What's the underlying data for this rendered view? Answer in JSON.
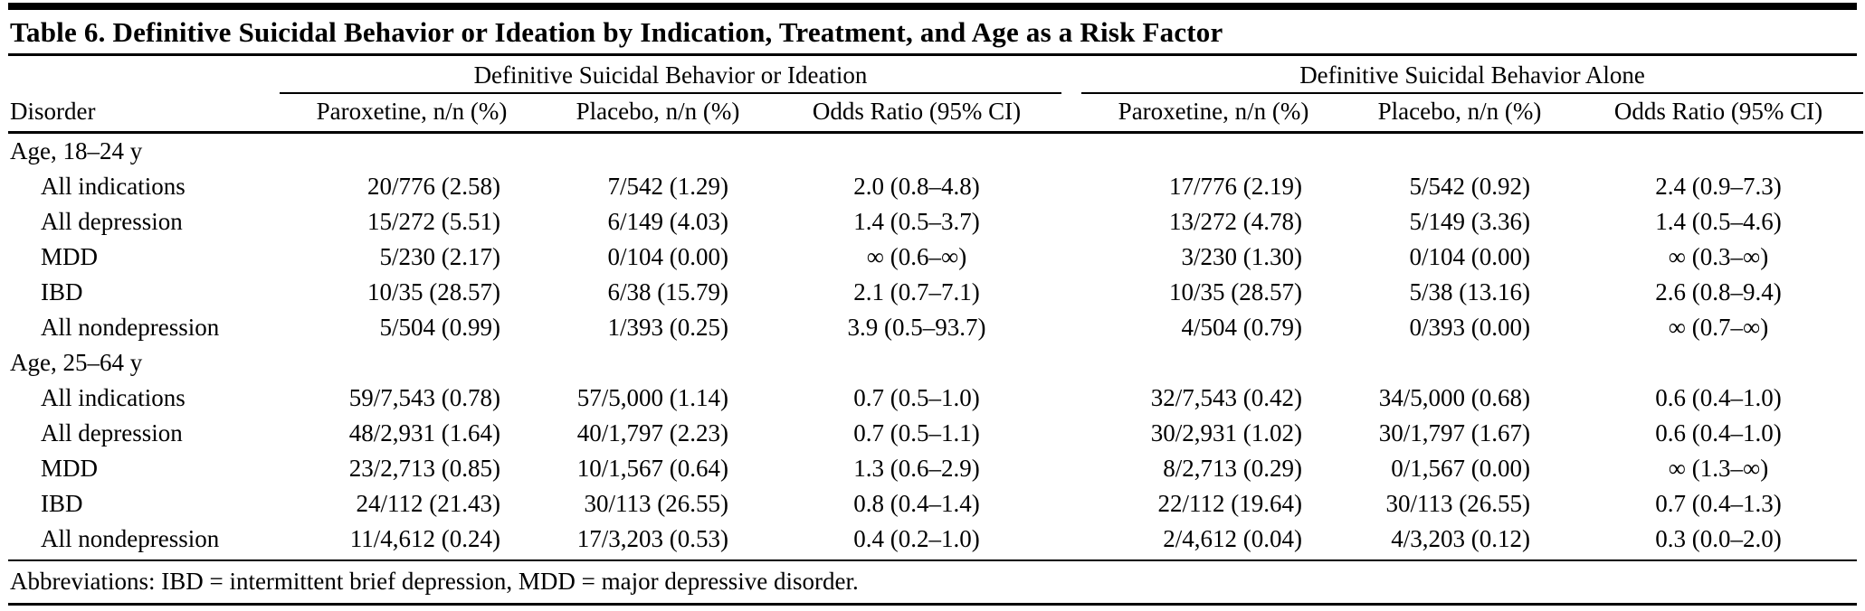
{
  "title": "Table 6. Definitive Suicidal Behavior or Ideation by Indication, Treatment, and Age as a Risk Factor",
  "groups": [
    "Definitive Suicidal Behavior or Ideation",
    "Definitive Suicidal Behavior Alone"
  ],
  "disorder_header": "Disorder",
  "columns": [
    "Paroxetine, n/n (%)",
    "Placebo, n/n (%)",
    "Odds Ratio (95% CI)",
    "Paroxetine, n/n (%)",
    "Placebo, n/n (%)",
    "Odds Ratio (95% CI)"
  ],
  "sections": [
    {
      "label": "Age, 18–24 y",
      "rows": [
        {
          "disorder": "All indications",
          "cells": [
            "20/776 (2.58)",
            "7/542 (1.29)",
            "2.0 (0.8–4.8)",
            "17/776 (2.19)",
            "5/542 (0.92)",
            "2.4 (0.9–7.3)"
          ]
        },
        {
          "disorder": "All depression",
          "cells": [
            "15/272 (5.51)",
            "6/149 (4.03)",
            "1.4 (0.5–3.7)",
            "13/272 (4.78)",
            "5/149 (3.36)",
            "1.4 (0.5–4.6)"
          ]
        },
        {
          "disorder": "MDD",
          "cells": [
            "5/230 (2.17)",
            "0/104 (0.00)",
            "∞ (0.6–∞)",
            "3/230 (1.30)",
            "0/104 (0.00)",
            "∞ (0.3–∞)"
          ]
        },
        {
          "disorder": "IBD",
          "cells": [
            "10/35 (28.57)",
            "6/38 (15.79)",
            "2.1 (0.7–7.1)",
            "10/35 (28.57)",
            "5/38 (13.16)",
            "2.6 (0.8–9.4)"
          ]
        },
        {
          "disorder": "All nondepression",
          "cells": [
            "5/504 (0.99)",
            "1/393 (0.25)",
            "3.9 (0.5–93.7)",
            "4/504 (0.79)",
            "0/393 (0.00)",
            "∞ (0.7–∞)"
          ]
        }
      ]
    },
    {
      "label": "Age, 25–64 y",
      "rows": [
        {
          "disorder": "All indications",
          "cells": [
            "59/7,543 (0.78)",
            "57/5,000 (1.14)",
            "0.7 (0.5–1.0)",
            "32/7,543 (0.42)",
            "34/5,000 (0.68)",
            "0.6 (0.4–1.0)"
          ]
        },
        {
          "disorder": "All depression",
          "cells": [
            "48/2,931 (1.64)",
            "40/1,797 (2.23)",
            "0.7 (0.5–1.1)",
            "30/2,931 (1.02)",
            "30/1,797 (1.67)",
            "0.6 (0.4–1.0)"
          ]
        },
        {
          "disorder": "MDD",
          "cells": [
            "23/2,713 (0.85)",
            "10/1,567 (0.64)",
            "1.3 (0.6–2.9)",
            "8/2,713 (0.29)",
            "0/1,567 (0.00)",
            "∞ (1.3–∞)"
          ]
        },
        {
          "disorder": "IBD",
          "cells": [
            "24/112 (21.43)",
            "30/113 (26.55)",
            "0.8 (0.4–1.4)",
            "22/112 (19.64)",
            "30/113 (26.55)",
            "0.7 (0.4–1.3)"
          ]
        },
        {
          "disorder": "All nondepression",
          "cells": [
            "11/4,612 (0.24)",
            "17/3,203 (0.53)",
            "0.4 (0.2–1.0)",
            "2/4,612 (0.04)",
            "4/3,203 (0.12)",
            "0.3 (0.0–2.0)"
          ]
        }
      ]
    }
  ],
  "footnote": "Abbreviations: IBD = intermittent brief depression, MDD = major depressive disorder."
}
